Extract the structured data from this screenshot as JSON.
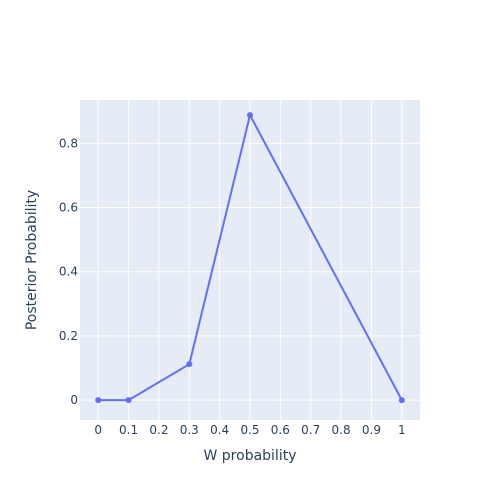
{
  "chart_data": {
    "type": "line",
    "title": "",
    "xlabel": "W probability",
    "ylabel": "Posterior Probability",
    "xlim": [
      -0.06,
      1.06
    ],
    "ylim": [
      -0.062,
      0.935
    ],
    "x_ticks": [
      0,
      0.1,
      0.2,
      0.3,
      0.4,
      0.5,
      0.6,
      0.7,
      0.8,
      0.9,
      1
    ],
    "x_tick_labels": [
      "0",
      "0.1",
      "0.2",
      "0.3",
      "0.4",
      "0.5",
      "0.6",
      "0.7",
      "0.8",
      "0.9",
      "1"
    ],
    "y_ticks": [
      0,
      0.2,
      0.4,
      0.6,
      0.8
    ],
    "y_tick_labels": [
      "0",
      "0.2",
      "0.4",
      "0.6",
      "0.8"
    ],
    "grid": true,
    "legend": "none",
    "series": [
      {
        "x": [
          0,
          0.1,
          0.3,
          0.5,
          1
        ],
        "y": [
          0,
          0,
          0.112,
          0.888,
          0
        ]
      }
    ],
    "colors": {
      "plot_background": "#e5ecf6",
      "grid": "#ffffff",
      "line": "#636efa",
      "text": "#2a3f5f"
    }
  }
}
